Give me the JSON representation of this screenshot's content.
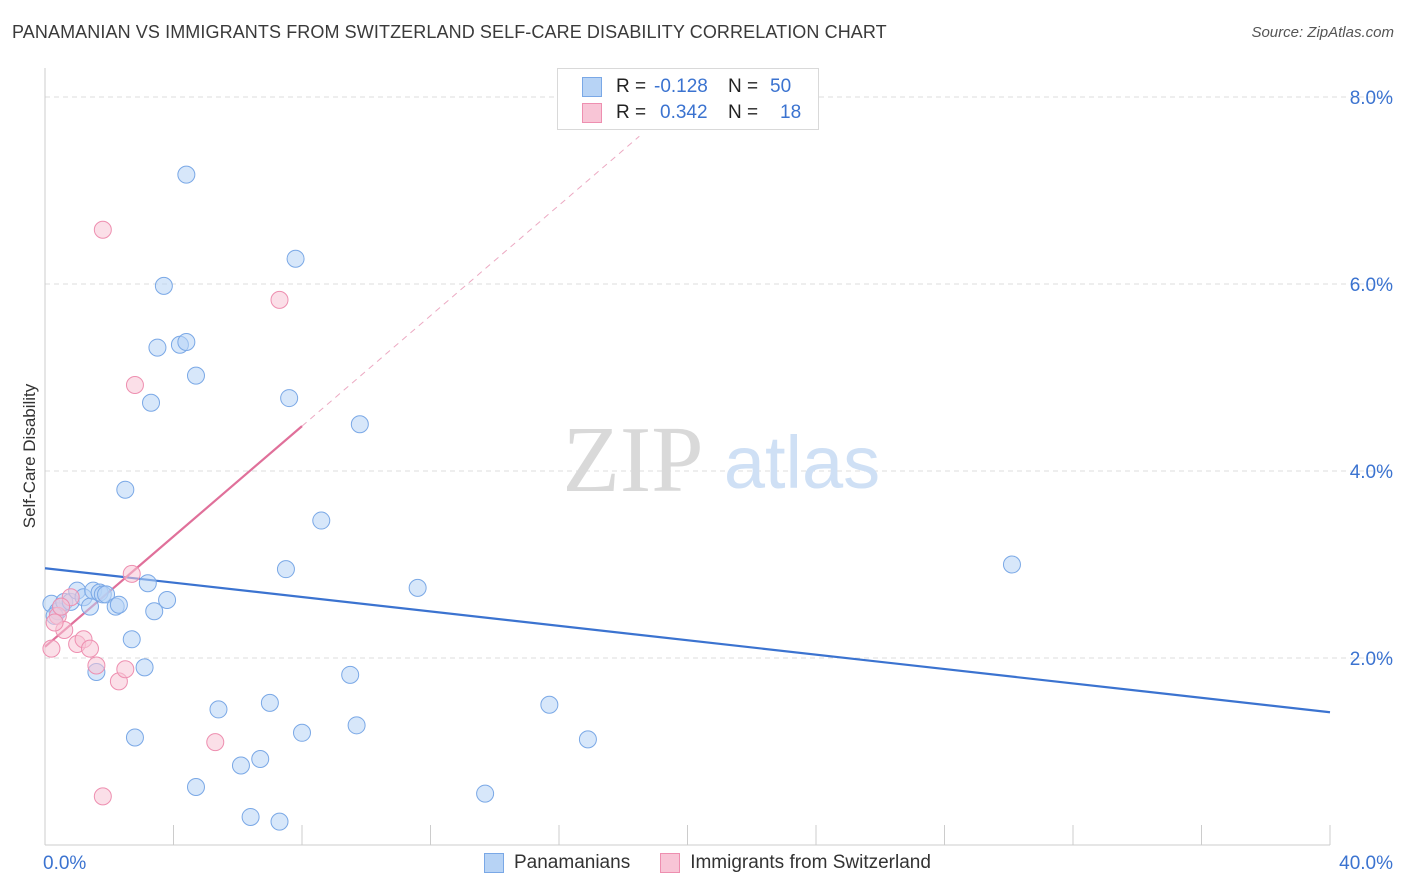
{
  "title": "PANAMANIAN VS IMMIGRANTS FROM SWITZERLAND SELF-CARE DISABILITY CORRELATION CHART",
  "source": "Source: ZipAtlas.com",
  "watermark": {
    "zip": "ZIP",
    "atlas": "atlas"
  },
  "legend": {
    "r_label": "R =",
    "n_label": "N =",
    "rows": [
      {
        "r": "-0.128",
        "n": "50",
        "color": "#b7d3f5"
      },
      {
        "r": "0.342",
        "n": "18",
        "color": "#f8c5d6"
      }
    ]
  },
  "bottom_legend": [
    "Panamanians",
    "Immigrants from Switzerland"
  ],
  "chart_data": {
    "type": "scatter",
    "title": "PANAMANIAN VS IMMIGRANTS FROM SWITZERLAND SELF-CARE DISABILITY CORRELATION CHART",
    "xlabel": "",
    "ylabel": "Self-Care Disability",
    "xlim": [
      0,
      40
    ],
    "ylim": [
      0,
      8.3
    ],
    "x_tick_labels": [
      "0.0%",
      "40.0%"
    ],
    "y_ticks": [
      2,
      4,
      6,
      8
    ],
    "y_tick_labels": [
      "2.0%",
      "4.0%",
      "6.0%",
      "8.0%"
    ],
    "grid": true,
    "legend_position": "top-center",
    "colors": {
      "blue": "#3b73d0",
      "pink": "#e0709a"
    },
    "series": [
      {
        "name": "Panamanians",
        "color": "#b7d3f5",
        "points": [
          [
            0.2,
            2.58
          ],
          [
            0.4,
            2.5
          ],
          [
            0.5,
            2.55
          ],
          [
            0.6,
            2.6
          ],
          [
            0.8,
            2.6
          ],
          [
            1.0,
            2.72
          ],
          [
            1.2,
            2.65
          ],
          [
            1.4,
            2.55
          ],
          [
            1.5,
            2.72
          ],
          [
            1.7,
            2.7
          ],
          [
            1.8,
            2.68
          ],
          [
            1.9,
            2.68
          ],
          [
            2.2,
            2.55
          ],
          [
            2.3,
            2.57
          ],
          [
            2.5,
            3.8
          ],
          [
            2.7,
            2.2
          ],
          [
            2.8,
            1.15
          ],
          [
            3.1,
            1.9
          ],
          [
            3.2,
            2.8
          ],
          [
            3.3,
            4.73
          ],
          [
            3.4,
            2.5
          ],
          [
            3.5,
            5.32
          ],
          [
            3.7,
            5.98
          ],
          [
            3.8,
            2.62
          ],
          [
            4.2,
            5.35
          ],
          [
            4.4,
            7.17
          ],
          [
            4.4,
            5.38
          ],
          [
            4.7,
            5.02
          ],
          [
            4.7,
            0.62
          ],
          [
            5.4,
            1.45
          ],
          [
            6.1,
            0.85
          ],
          [
            6.4,
            0.3
          ],
          [
            6.7,
            0.92
          ],
          [
            7.0,
            1.52
          ],
          [
            7.3,
            0.25
          ],
          [
            7.5,
            2.95
          ],
          [
            7.6,
            4.78
          ],
          [
            7.8,
            6.27
          ],
          [
            8.0,
            1.2
          ],
          [
            8.6,
            3.47
          ],
          [
            9.5,
            1.82
          ],
          [
            9.7,
            1.28
          ],
          [
            9.8,
            4.5
          ],
          [
            11.6,
            2.75
          ],
          [
            13.7,
            0.55
          ],
          [
            15.7,
            1.5
          ],
          [
            16.9,
            1.13
          ],
          [
            30.1,
            3.0
          ],
          [
            0.3,
            2.45
          ],
          [
            1.6,
            1.85
          ]
        ]
      },
      {
        "name": "Immigrants from Switzerland",
        "color": "#f8c5d6",
        "points": [
          [
            0.2,
            2.1
          ],
          [
            0.4,
            2.45
          ],
          [
            0.6,
            2.3
          ],
          [
            0.8,
            2.65
          ],
          [
            1.0,
            2.15
          ],
          [
            1.2,
            2.2
          ],
          [
            1.4,
            2.1
          ],
          [
            1.6,
            1.92
          ],
          [
            1.8,
            6.58
          ],
          [
            1.8,
            0.52
          ],
          [
            2.3,
            1.75
          ],
          [
            2.5,
            1.88
          ],
          [
            2.7,
            2.9
          ],
          [
            2.8,
            4.92
          ],
          [
            5.3,
            1.1
          ],
          [
            7.3,
            5.83
          ],
          [
            0.5,
            2.55
          ],
          [
            0.3,
            2.38
          ]
        ]
      }
    ],
    "trendlines": [
      {
        "series": "Panamanians",
        "x": [
          0,
          40
        ],
        "y": [
          2.96,
          1.42
        ],
        "style": "solid"
      },
      {
        "series": "Immigrants from Switzerland",
        "x": [
          0,
          8
        ],
        "y": [
          2.12,
          4.48
        ],
        "style": "solid"
      },
      {
        "series": "Immigrants from Switzerland",
        "x": [
          8,
          18.5
        ],
        "y": [
          4.48,
          7.58
        ],
        "style": "dashed"
      }
    ]
  }
}
